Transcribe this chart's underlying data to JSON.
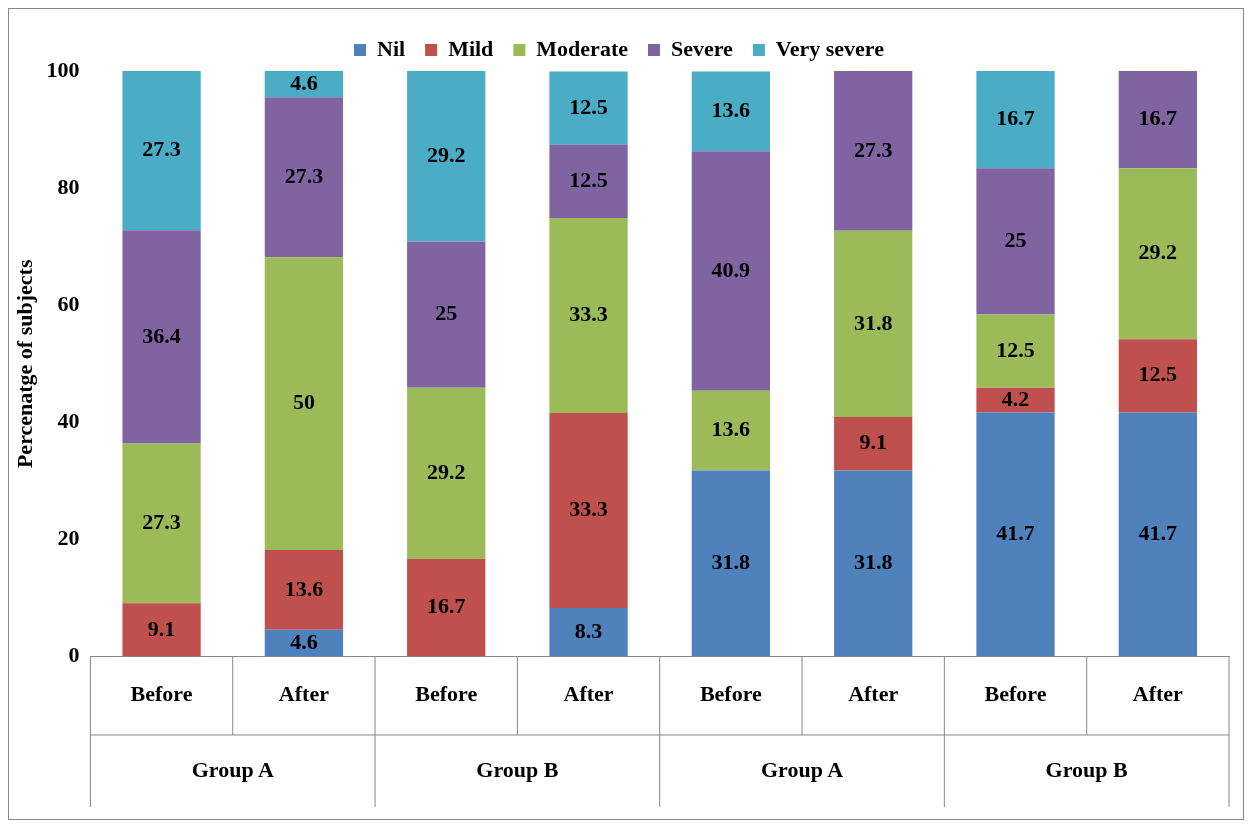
{
  "chart_data": {
    "type": "bar",
    "stacked": true,
    "ylabel": "Percenatge of subjects",
    "categories": [
      "Before",
      "After",
      "Before",
      "After",
      "Before",
      "After",
      "Before",
      "After"
    ],
    "annotations": [
      "Group A",
      "Group B",
      "Group A",
      "Group B"
    ],
    "series": [
      {
        "name": "Nil",
        "color": "#4f81bd",
        "values": [
          null,
          4.6,
          null,
          8.3,
          31.8,
          31.8,
          41.7,
          41.7
        ]
      },
      {
        "name": "Mild",
        "color": "#c0504d",
        "values": [
          9.1,
          13.6,
          16.7,
          33.3,
          null,
          9.1,
          4.2,
          12.5
        ]
      },
      {
        "name": "Moderate",
        "color": "#9bbb59",
        "values": [
          27.3,
          50,
          29.2,
          33.3,
          13.6,
          31.8,
          12.5,
          29.2
        ]
      },
      {
        "name": "Severe",
        "color": "#8064a2",
        "values": [
          36.4,
          27.3,
          25,
          12.5,
          40.9,
          27.3,
          25,
          16.7
        ]
      },
      {
        "name": "Very severe",
        "color": "#4bacc6",
        "values": [
          27.3,
          4.6,
          29.2,
          12.5,
          13.6,
          null,
          16.7,
          null
        ]
      }
    ],
    "ylim": [
      0,
      100
    ],
    "yticks": [
      0,
      20,
      40,
      60,
      80,
      100
    ],
    "grid": false,
    "legend": "top",
    "data_labels": true
  }
}
